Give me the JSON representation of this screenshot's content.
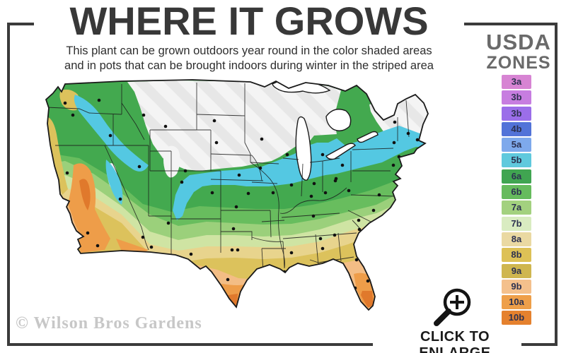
{
  "header": {
    "title": "WHERE IT GROWS",
    "subtitle_line1": "This plant can be grown outdoors year round in the color shaded areas",
    "subtitle_line2": "and in pots that can be brought indoors during winter in the striped area"
  },
  "legend": {
    "title_line1": "USDA",
    "title_line2": "ZONES",
    "label_color": "#2c3150",
    "items": [
      {
        "label": "3a",
        "color": "#d784d3"
      },
      {
        "label": "3b",
        "color": "#c77de0"
      },
      {
        "label": "3b",
        "color": "#9b6ee9"
      },
      {
        "label": "4b",
        "color": "#5273d8"
      },
      {
        "label": "5a",
        "color": "#7ea9ec"
      },
      {
        "label": "5b",
        "color": "#5fc9dd"
      },
      {
        "label": "6a",
        "color": "#40a551"
      },
      {
        "label": "6b",
        "color": "#66bb5d"
      },
      {
        "label": "7a",
        "color": "#a3d17f"
      },
      {
        "label": "7b",
        "color": "#d9ecc1"
      },
      {
        "label": "8a",
        "color": "#ead9a2"
      },
      {
        "label": "8b",
        "color": "#ddc156"
      },
      {
        "label": "9a",
        "color": "#cfb64f"
      },
      {
        "label": "9b",
        "color": "#f4c08c"
      },
      {
        "label": "10a",
        "color": "#ee9f49"
      },
      {
        "label": "10b",
        "color": "#e5812e"
      }
    ]
  },
  "map": {
    "marker_color": "#111111",
    "outline_color": "#1a1a1a",
    "striped_zone_fill": "#f4f4f4",
    "stripe_color": "#e7e7e7"
  },
  "footer": {
    "watermark": "© Wilson Bros Gardens",
    "cta": "CLICK TO ENLARGE"
  }
}
